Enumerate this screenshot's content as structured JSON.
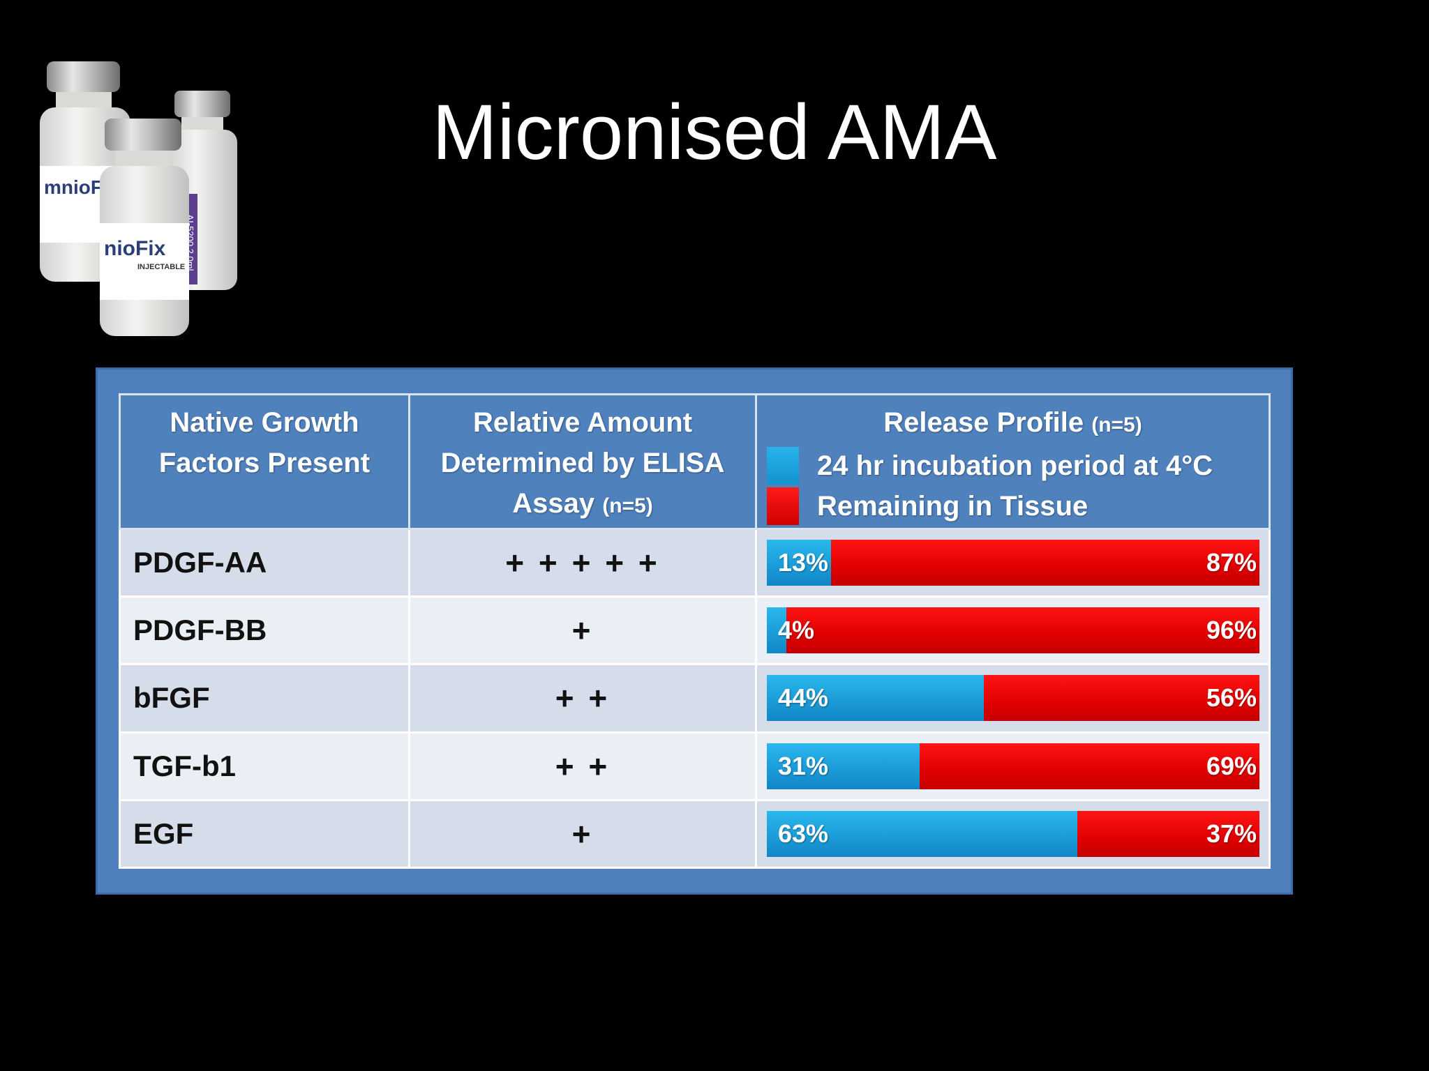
{
  "slide": {
    "title": "Micronised AMA"
  },
  "vials_image": {
    "icon": "vials-photo",
    "brand_text": "mnioFix",
    "front_label": "nioFix",
    "sub_label": "INJECTABLE",
    "side_label": "AI-5200  2.0ml"
  },
  "table": {
    "headers": {
      "col1": [
        "Native Growth",
        "Factors Present"
      ],
      "col2": [
        "Relative Amount",
        "Determined by ELISA"
      ],
      "col2_line3": "Assay",
      "col2_n": "(n=5)",
      "col3_title": "Release Profile",
      "col3_n": "(n=5)",
      "legend_blue": "24 hr incubation  period at 4°C",
      "legend_red": "Remaining in Tissue",
      "blue_color": "#1a9ad6",
      "red_color": "#e00000"
    },
    "rows": [
      {
        "factor": "PDGF-AA",
        "amount": "+ + + + +",
        "released": 13,
        "remaining": 87,
        "released_label": "13%",
        "remaining_label": "87%"
      },
      {
        "factor": "PDGF-BB",
        "amount": "+",
        "released": 4,
        "remaining": 96,
        "released_label": "4%",
        "remaining_label": "96%"
      },
      {
        "factor": "bFGF",
        "amount": "+ +",
        "released": 44,
        "remaining": 56,
        "released_label": "44%",
        "remaining_label": "56%"
      },
      {
        "factor": "TGF-b1",
        "amount": "+ +",
        "released": 31,
        "remaining": 69,
        "released_label": "31%",
        "remaining_label": "69%"
      },
      {
        "factor": "EGF",
        "amount": "+",
        "released": 63,
        "remaining": 37,
        "released_label": "63%",
        "remaining_label": "37%"
      }
    ]
  }
}
